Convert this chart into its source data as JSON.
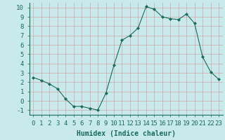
{
  "x": [
    0,
    1,
    2,
    3,
    4,
    5,
    6,
    7,
    8,
    9,
    10,
    11,
    12,
    13,
    14,
    15,
    16,
    17,
    18,
    19,
    20,
    21,
    22,
    23
  ],
  "y": [
    2.5,
    2.2,
    1.8,
    1.3,
    0.2,
    -0.6,
    -0.6,
    -0.8,
    -1.0,
    0.8,
    3.8,
    6.5,
    7.0,
    7.8,
    10.1,
    9.8,
    9.0,
    8.8,
    8.7,
    9.3,
    8.3,
    4.7,
    3.1,
    2.3
  ],
  "line_color": "#1a6b5a",
  "marker": "D",
  "marker_size": 2,
  "bg_color": "#c8eaea",
  "grid_color": "#b8c8c8",
  "xlabel": "Humidex (Indice chaleur)",
  "ylabel_ticks": [
    -1,
    0,
    1,
    2,
    3,
    4,
    5,
    6,
    7,
    8,
    9,
    10
  ],
  "xlim": [
    -0.5,
    23.5
  ],
  "ylim": [
    -1.5,
    10.5
  ],
  "xlabel_fontsize": 7,
  "tick_fontsize": 6.5
}
